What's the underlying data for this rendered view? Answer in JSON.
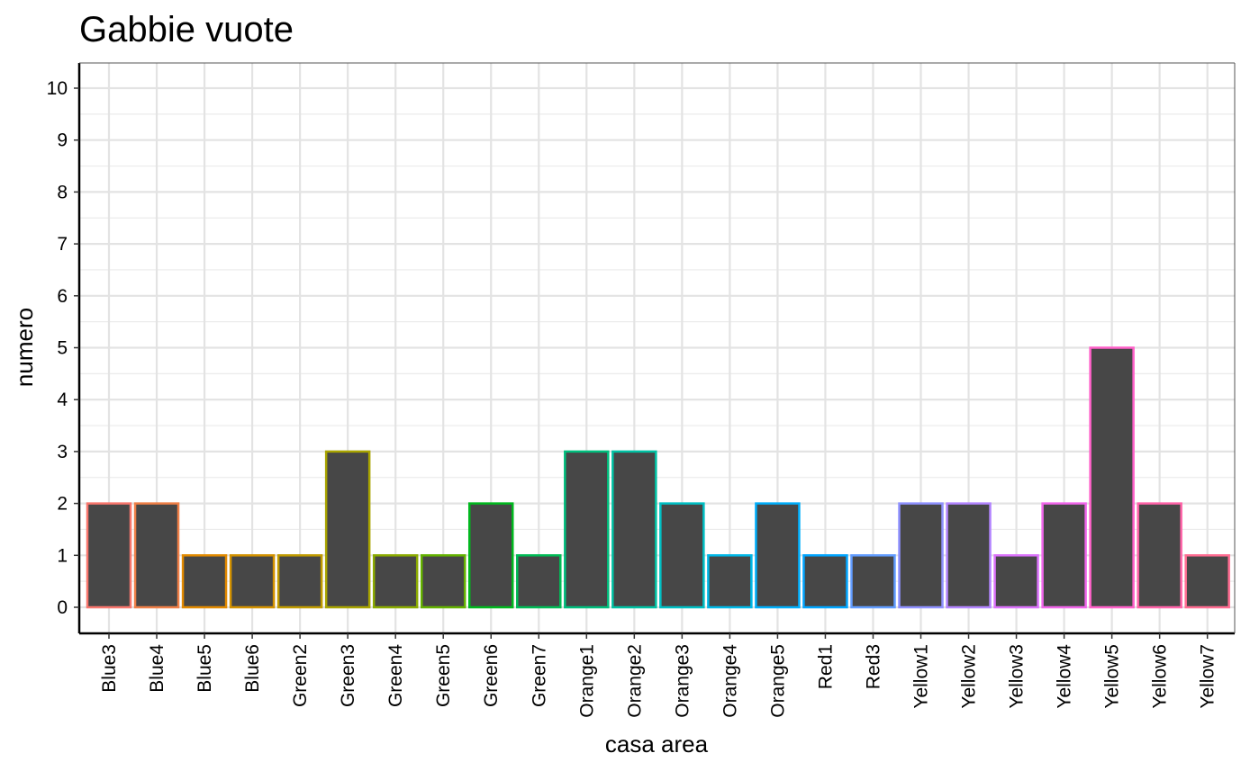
{
  "chart_data": {
    "type": "bar",
    "title": "Gabbie vuote",
    "xlabel": "casa area",
    "ylabel": "numero",
    "categories": [
      "Blue3",
      "Blue4",
      "Blue5",
      "Blue6",
      "Green2",
      "Green3",
      "Green4",
      "Green5",
      "Green6",
      "Green7",
      "Orange1",
      "Orange2",
      "Orange3",
      "Orange4",
      "Orange5",
      "Red1",
      "Red3",
      "Yellow1",
      "Yellow2",
      "Yellow3",
      "Yellow4",
      "Yellow5",
      "Yellow6",
      "Yellow7"
    ],
    "values": [
      2,
      2,
      1,
      1,
      1,
      3,
      1,
      1,
      2,
      1,
      3,
      3,
      2,
      1,
      2,
      1,
      1,
      2,
      2,
      1,
      2,
      5,
      2,
      1
    ],
    "bar_fill": "#474747",
    "bar_outline_colors": [
      "#F8766D",
      "#EF7F47",
      "#E28A00",
      "#D39200",
      "#C09B00",
      "#A8A400",
      "#8BAB00",
      "#64B200",
      "#00B81E",
      "#00BB56",
      "#00BE7D",
      "#00C1A3",
      "#00BFC4",
      "#00B8E7",
      "#00AEFA",
      "#00A5FF",
      "#619CFF",
      "#8F91FF",
      "#B385FF",
      "#DB72FB",
      "#F066EA",
      "#FF61C9",
      "#FF63A8",
      "#FF6C91"
    ],
    "ylim": [
      0,
      10
    ],
    "yticks": [
      0,
      1,
      2,
      3,
      4,
      5,
      6,
      7,
      8,
      9,
      10
    ],
    "grid": true,
    "legend": "none"
  }
}
